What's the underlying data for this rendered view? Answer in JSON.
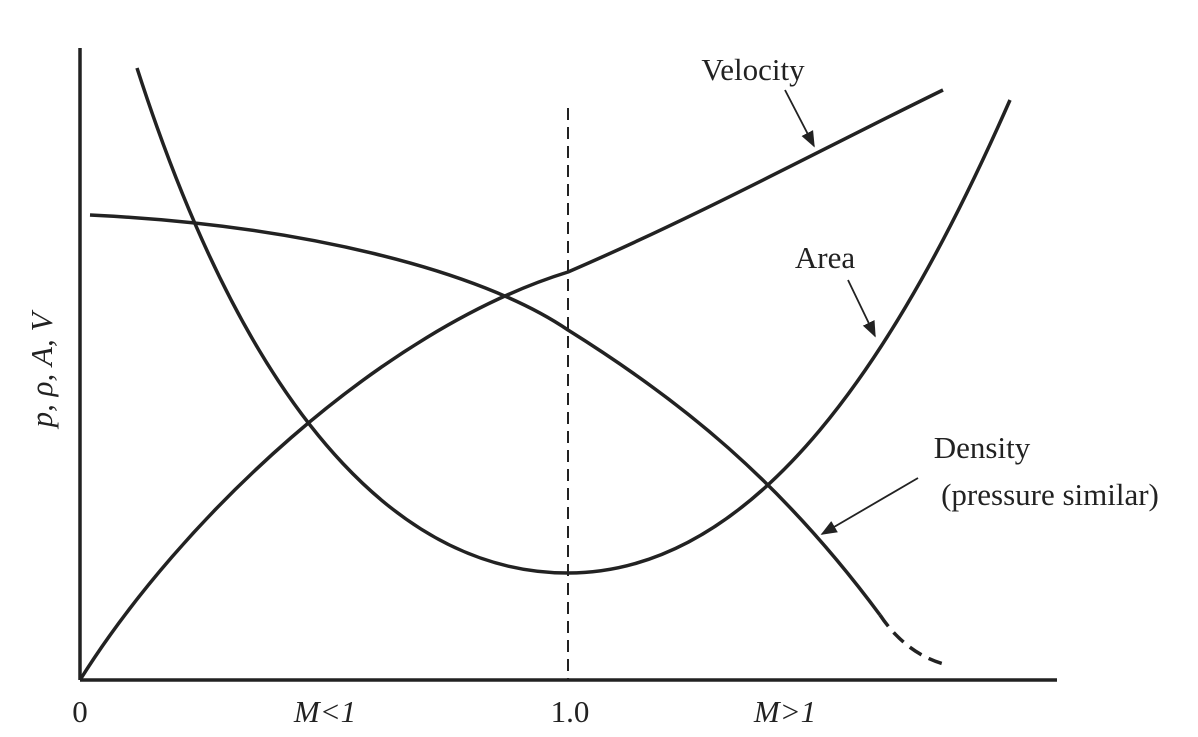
{
  "y_axis": {
    "label": "p, ρ, A, V"
  },
  "x_axis": {
    "labels": [
      "0",
      "M<1",
      "1.0",
      "M>1"
    ]
  },
  "curves": [
    {
      "label": "Velocity"
    },
    {
      "label": "Area"
    },
    {
      "label": "Density",
      "note": "(pressure similar)"
    }
  ]
}
